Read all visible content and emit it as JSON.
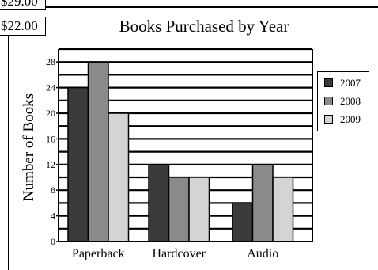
{
  "prices": {
    "top": "$29.00",
    "bottom": "$22.00"
  },
  "chart_data": {
    "type": "bar",
    "title": "Books Purchased by Year",
    "ylabel": "Number of Books",
    "xlabel": "",
    "categories": [
      "Paperback",
      "Hardcover",
      "Audio"
    ],
    "series": [
      {
        "name": "2007",
        "values": [
          24,
          12,
          6
        ],
        "color": "#3a3a3a"
      },
      {
        "name": "2008",
        "values": [
          28,
          10,
          12
        ],
        "color": "#8a8a8a"
      },
      {
        "name": "2009",
        "values": [
          20,
          10,
          10
        ],
        "color": "#d4d4d4"
      }
    ],
    "ylim": [
      0,
      30
    ],
    "yticks": [
      0,
      4,
      8,
      12,
      16,
      20,
      24,
      28
    ],
    "grid": true,
    "legend_position": "right"
  }
}
